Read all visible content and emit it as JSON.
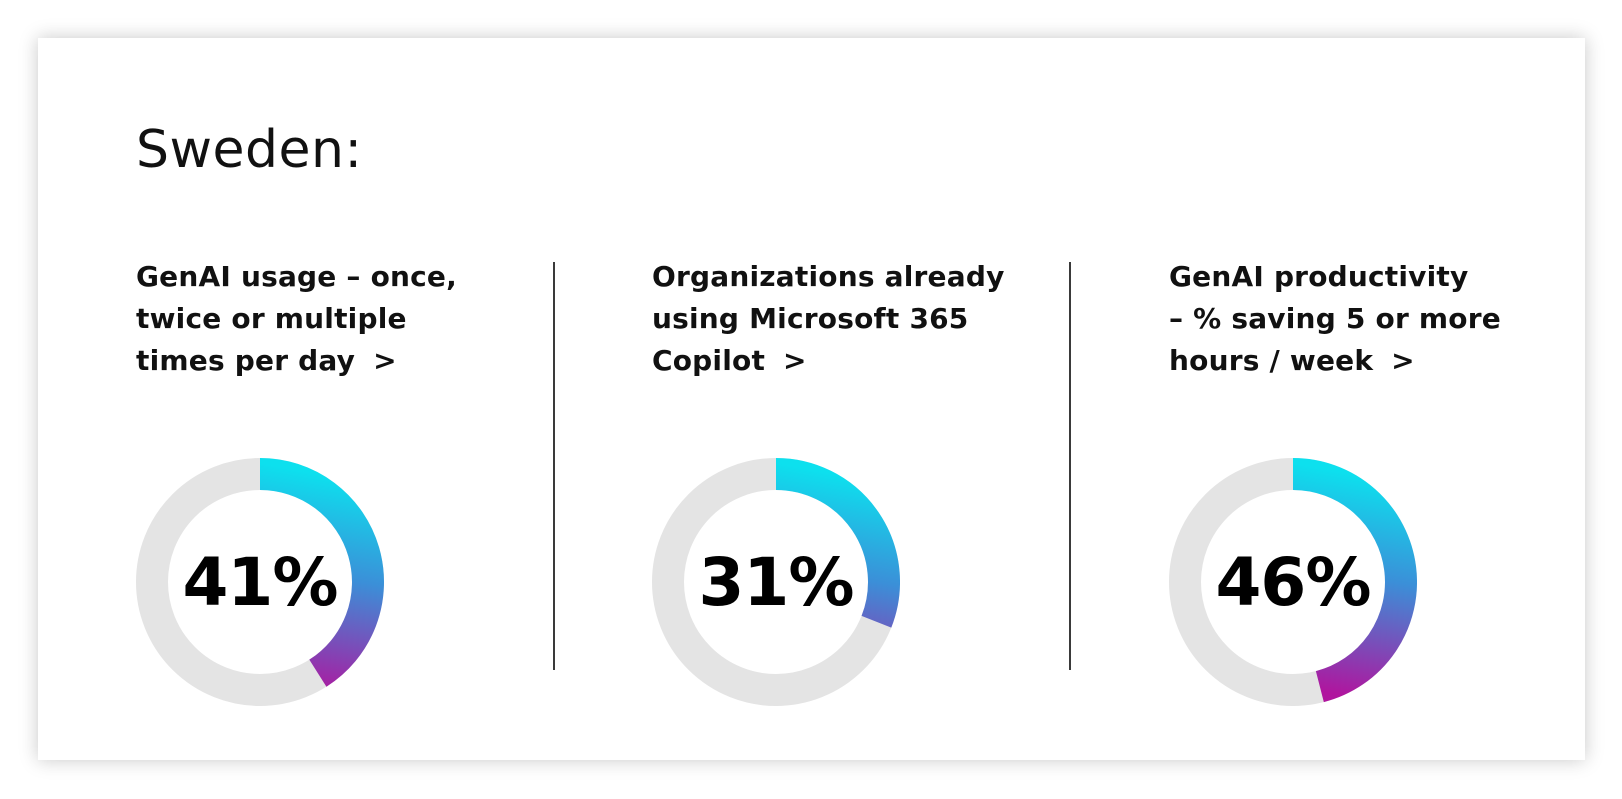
{
  "title": "Sweden:",
  "stats": [
    {
      "label_lines": [
        "GenAI usage – once,",
        "twice or multiple",
        "times per day"
      ],
      "chevron": ">",
      "value_text": "41%",
      "value": 41
    },
    {
      "label_lines": [
        "Organizations already",
        "using Microsoft 365",
        "Copilot"
      ],
      "chevron": ">",
      "value_text": "31%",
      "value": 31
    },
    {
      "label_lines": [
        "GenAI productivity",
        "–  % saving 5 or more",
        "hours / week"
      ],
      "chevron": ">",
      "value_text": "46%",
      "value": 46
    }
  ],
  "colors": {
    "track": "#e4e4e4",
    "gradient_start": "#0de0ee",
    "gradient_mid": "#3b8fd8",
    "gradient_end": "#b0159e",
    "text": "#111111",
    "divider": "#3a3a3a"
  }
}
